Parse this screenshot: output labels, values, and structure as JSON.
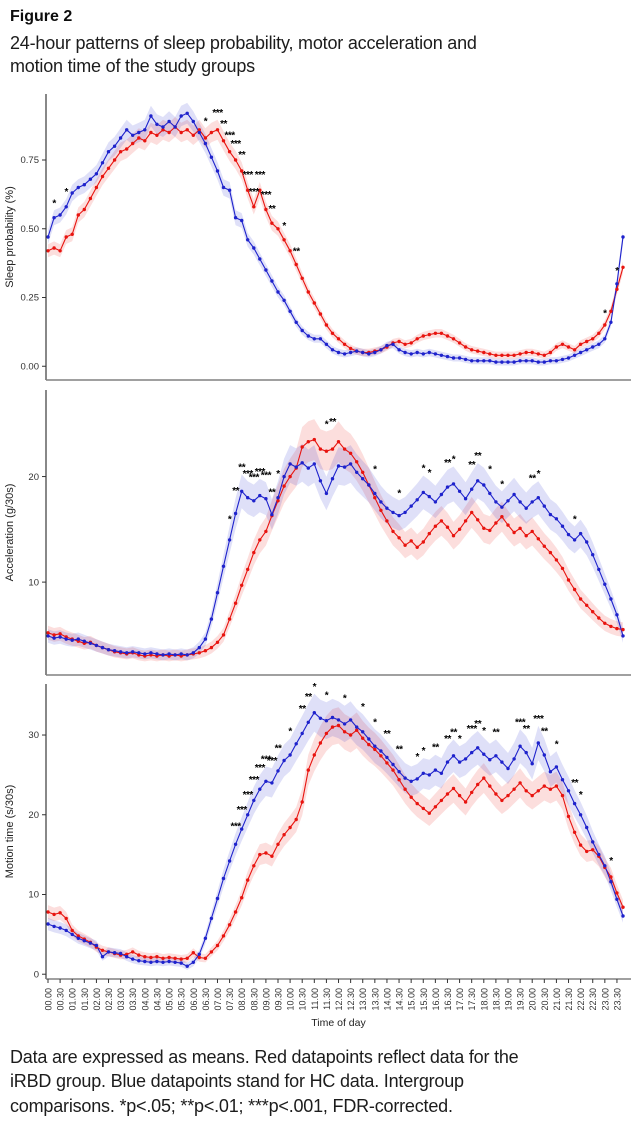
{
  "figure": {
    "label": "Figure 2",
    "title_line1": "24-hour patterns of sleep probability, motor acceleration and",
    "title_line2": "motion time of the study groups"
  },
  "caption": {
    "lines": [
      "Data are expressed as means. Red datapoints reflect data for the",
      "iRBD group. Blue datapoints stand for HC data. Intergroup",
      "comparisons. *p<.05; **p<.01; ***p<.001, FDR-corrected."
    ]
  },
  "groups": {
    "red": {
      "name": "iRBD",
      "color": "#e8140f"
    },
    "blue": {
      "name": "HC",
      "color": "#1e22cc"
    }
  },
  "x_axis": {
    "title": "Time of day",
    "points": 96,
    "interval_min": 15,
    "labels": [
      "00.00",
      "00.30",
      "01.00",
      "01.30",
      "02.00",
      "02.30",
      "03.00",
      "03.30",
      "04.00",
      "04.30",
      "05.00",
      "05.30",
      "06.00",
      "06.30",
      "07.00",
      "07.30",
      "08.00",
      "08.30",
      "09.00",
      "09.30",
      "10.00",
      "10.30",
      "11.00",
      "11.30",
      "12.00",
      "12.30",
      "13.00",
      "13.30",
      "14.00",
      "14.30",
      "15.00",
      "15.30",
      "16.00",
      "16.30",
      "17.00",
      "17.30",
      "18.00",
      "18.30",
      "19.00",
      "19.30",
      "20.00",
      "20.30",
      "21.00",
      "21.30",
      "22.00",
      "22.30",
      "23.00",
      "23.30"
    ]
  },
  "significance_legend": {
    "1": "p<.05",
    "2": "p<.01",
    "3": "p<.001"
  },
  "chart_data": [
    {
      "type": "line",
      "ylabel": "Sleep probability (%)",
      "ylim": [
        -0.05,
        0.99
      ],
      "yticks": [
        {
          "v": 0,
          "label": "0.00"
        },
        {
          "v": 0.25,
          "label": "0.25"
        },
        {
          "v": 0.5,
          "label": "0.50"
        },
        {
          "v": 0.75,
          "label": "0.75"
        }
      ],
      "band": {
        "base": 0.012,
        "frac": 0.028
      },
      "clamp_min": -0.015,
      "series": [
        {
          "name": "iRBD",
          "color": "#e8140f",
          "values": [
            0.42,
            0.43,
            0.42,
            0.47,
            0.48,
            0.55,
            0.57,
            0.61,
            0.65,
            0.69,
            0.72,
            0.75,
            0.78,
            0.79,
            0.81,
            0.83,
            0.82,
            0.85,
            0.84,
            0.86,
            0.85,
            0.87,
            0.85,
            0.86,
            0.84,
            0.86,
            0.83,
            0.85,
            0.86,
            0.82,
            0.78,
            0.75,
            0.71,
            0.64,
            0.58,
            0.64,
            0.57,
            0.52,
            0.5,
            0.46,
            0.42,
            0.37,
            0.32,
            0.27,
            0.23,
            0.19,
            0.15,
            0.12,
            0.1,
            0.08,
            0.065,
            0.055,
            0.05,
            0.05,
            0.055,
            0.06,
            0.07,
            0.085,
            0.09,
            0.08,
            0.085,
            0.1,
            0.11,
            0.115,
            0.12,
            0.12,
            0.11,
            0.1,
            0.085,
            0.07,
            0.06,
            0.055,
            0.05,
            0.045,
            0.04,
            0.04,
            0.04,
            0.04,
            0.045,
            0.05,
            0.05,
            0.045,
            0.04,
            0.05,
            0.07,
            0.08,
            0.07,
            0.06,
            0.08,
            0.09,
            0.1,
            0.12,
            0.15,
            0.2,
            0.28,
            0.36
          ]
        },
        {
          "name": "HC",
          "color": "#1e22cc",
          "values": [
            0.47,
            0.54,
            0.55,
            0.58,
            0.63,
            0.65,
            0.66,
            0.68,
            0.7,
            0.74,
            0.78,
            0.8,
            0.83,
            0.86,
            0.84,
            0.85,
            0.86,
            0.91,
            0.88,
            0.87,
            0.89,
            0.87,
            0.91,
            0.92,
            0.89,
            0.85,
            0.81,
            0.76,
            0.71,
            0.65,
            0.64,
            0.54,
            0.53,
            0.46,
            0.43,
            0.39,
            0.35,
            0.31,
            0.27,
            0.24,
            0.2,
            0.16,
            0.13,
            0.11,
            0.1,
            0.1,
            0.08,
            0.06,
            0.05,
            0.045,
            0.05,
            0.055,
            0.05,
            0.045,
            0.05,
            0.06,
            0.075,
            0.08,
            0.06,
            0.05,
            0.045,
            0.05,
            0.045,
            0.05,
            0.045,
            0.04,
            0.035,
            0.03,
            0.03,
            0.025,
            0.02,
            0.02,
            0.02,
            0.02,
            0.015,
            0.015,
            0.015,
            0.015,
            0.02,
            0.02,
            0.02,
            0.015,
            0.015,
            0.02,
            0.02,
            0.025,
            0.03,
            0.04,
            0.05,
            0.06,
            0.07,
            0.08,
            0.1,
            0.16,
            0.3,
            0.47
          ]
        }
      ],
      "significance": [
        [
          1,
          1
        ],
        [
          3,
          1
        ],
        [
          26,
          1
        ],
        [
          28,
          3
        ],
        [
          29,
          2
        ],
        [
          30,
          3
        ],
        [
          31,
          3
        ],
        [
          32,
          2
        ],
        [
          33,
          3
        ],
        [
          34,
          3
        ],
        [
          35,
          3
        ],
        [
          36,
          3
        ],
        [
          37,
          2
        ],
        [
          39,
          1
        ],
        [
          41,
          2
        ],
        [
          92,
          1
        ],
        [
          94,
          1
        ]
      ]
    },
    {
      "type": "line",
      "ylabel": "Acceleration (g/30s)",
      "ylim": [
        1.2,
        28.2
      ],
      "yticks": [
        {
          "v": 10,
          "label": "10"
        },
        {
          "v": 20,
          "label": "20"
        }
      ],
      "band": {
        "base": 0.3,
        "frac": 0.07
      },
      "clamp_min": 0,
      "series": [
        {
          "name": "iRBD",
          "color": "#e8140f",
          "values": [
            5.2,
            5.0,
            5.1,
            4.8,
            4.6,
            4.4,
            4.2,
            4.3,
            4.0,
            3.8,
            3.6,
            3.4,
            3.3,
            3.2,
            3.3,
            3.1,
            3.0,
            3.1,
            3.0,
            3.1,
            3.0,
            3.1,
            3.0,
            3.1,
            3.2,
            3.3,
            3.5,
            3.8,
            4.3,
            5.0,
            6.5,
            8.0,
            9.7,
            11.2,
            12.8,
            14.0,
            14.8,
            16.3,
            17.7,
            19.1,
            20.0,
            20.8,
            22.8,
            23.3,
            23.5,
            22.6,
            22.4,
            22.6,
            23.3,
            22.6,
            22.2,
            21.4,
            20.4,
            19.2,
            18.0,
            16.8,
            15.8,
            14.8,
            14.2,
            13.5,
            13.9,
            13.3,
            13.8,
            14.6,
            15.3,
            15.8,
            15.2,
            14.4,
            15.0,
            15.8,
            16.6,
            15.9,
            15.1,
            14.9,
            15.6,
            16.2,
            15.4,
            14.7,
            15.1,
            14.4,
            14.8,
            14.1,
            13.4,
            12.8,
            12.1,
            11.3,
            10.2,
            9.3,
            8.4,
            7.8,
            7.2,
            6.6,
            6.1,
            5.8,
            5.6,
            5.5
          ]
        },
        {
          "name": "HC",
          "color": "#1e22cc",
          "values": [
            4.9,
            4.7,
            4.8,
            4.6,
            4.5,
            4.6,
            4.4,
            4.2,
            4.0,
            3.8,
            3.6,
            3.5,
            3.4,
            3.3,
            3.4,
            3.3,
            3.2,
            3.3,
            3.2,
            3.1,
            3.2,
            3.1,
            3.2,
            3.1,
            3.3,
            3.8,
            4.6,
            6.5,
            9.0,
            11.5,
            14.0,
            16.5,
            18.6,
            18.0,
            17.7,
            18.2,
            17.9,
            16.4,
            18.0,
            20.0,
            21.2,
            20.9,
            21.3,
            20.8,
            21.2,
            19.6,
            18.4,
            19.8,
            21.0,
            20.9,
            21.2,
            20.4,
            19.8,
            19.2,
            18.4,
            17.6,
            17.0,
            16.6,
            16.3,
            16.6,
            17.2,
            17.8,
            18.5,
            18.1,
            17.6,
            18.3,
            19.0,
            19.3,
            18.6,
            17.9,
            18.8,
            19.6,
            19.2,
            18.4,
            17.6,
            17.1,
            17.7,
            18.3,
            17.6,
            17.0,
            17.6,
            18.0,
            17.2,
            16.4,
            16.0,
            15.3,
            14.5,
            14.0,
            14.6,
            13.8,
            12.6,
            11.2,
            9.8,
            8.4,
            6.9,
            4.9
          ]
        }
      ],
      "significance": [
        [
          30,
          1
        ],
        [
          31,
          2
        ],
        [
          32,
          2
        ],
        [
          33,
          3
        ],
        [
          34,
          3
        ],
        [
          35,
          3
        ],
        [
          36,
          3
        ],
        [
          37,
          2
        ],
        [
          38,
          1
        ],
        [
          46,
          1
        ],
        [
          47,
          2
        ],
        [
          54,
          1
        ],
        [
          58,
          1
        ],
        [
          62,
          1
        ],
        [
          63,
          1
        ],
        [
          66,
          2
        ],
        [
          67,
          1
        ],
        [
          70,
          2
        ],
        [
          71,
          2
        ],
        [
          73,
          1
        ],
        [
          75,
          1
        ],
        [
          80,
          2
        ],
        [
          81,
          1
        ],
        [
          87,
          1
        ]
      ]
    },
    {
      "type": "line",
      "ylabel": "Motion time (s/30s)",
      "ylim": [
        -0.6,
        36.4
      ],
      "yticks": [
        {
          "v": 0,
          "label": "0"
        },
        {
          "v": 10,
          "label": "10"
        },
        {
          "v": 20,
          "label": "20"
        },
        {
          "v": 30,
          "label": "30"
        }
      ],
      "band": {
        "base": 0.4,
        "frac": 0.06
      },
      "clamp_min": 0,
      "series": [
        {
          "name": "iRBD",
          "color": "#e8140f",
          "values": [
            7.8,
            7.5,
            7.7,
            7.0,
            5.5,
            4.8,
            4.4,
            4.0,
            3.4,
            3.0,
            2.8,
            2.6,
            2.4,
            2.5,
            2.8,
            2.4,
            2.2,
            2.1,
            2.2,
            2.0,
            2.1,
            2.0,
            1.9,
            2.0,
            2.7,
            2.1,
            2.0,
            2.8,
            3.6,
            4.8,
            6.2,
            7.8,
            9.6,
            11.8,
            13.6,
            15.0,
            15.2,
            14.8,
            16.3,
            17.5,
            18.4,
            19.4,
            21.6,
            25.6,
            27.5,
            29.0,
            30.2,
            31.0,
            31.2,
            30.4,
            30.0,
            30.6,
            29.6,
            28.8,
            28.2,
            27.4,
            26.5,
            25.6,
            24.4,
            23.2,
            22.2,
            21.4,
            20.8,
            20.2,
            21.0,
            21.8,
            22.6,
            23.3,
            22.4,
            21.6,
            22.8,
            23.8,
            24.6,
            23.6,
            22.6,
            21.8,
            22.4,
            23.2,
            24.0,
            23.0,
            22.4,
            23.0,
            23.6,
            23.2,
            23.6,
            22.4,
            19.8,
            17.8,
            16.2,
            15.4,
            15.6,
            14.8,
            13.4,
            12.2,
            10.2,
            8.4
          ]
        },
        {
          "name": "HC",
          "color": "#1e22cc",
          "values": [
            6.3,
            6.0,
            5.8,
            5.5,
            5.0,
            4.5,
            4.2,
            3.9,
            3.6,
            2.2,
            2.8,
            2.7,
            2.6,
            2.2,
            1.9,
            1.7,
            1.6,
            1.5,
            1.6,
            1.5,
            1.6,
            1.5,
            1.4,
            1.0,
            1.5,
            2.5,
            4.5,
            7.0,
            9.5,
            12.0,
            14.2,
            16.3,
            18.2,
            20.0,
            21.8,
            23.2,
            24.2,
            24.0,
            25.5,
            26.8,
            27.5,
            28.9,
            30.2,
            31.6,
            32.8,
            32.1,
            31.8,
            32.2,
            31.9,
            31.4,
            31.9,
            31.0,
            30.4,
            29.5,
            28.6,
            28.0,
            27.2,
            26.3,
            25.4,
            24.6,
            24.2,
            24.5,
            25.2,
            25.0,
            25.6,
            25.2,
            26.6,
            27.4,
            26.6,
            27.0,
            27.8,
            28.4,
            27.6,
            26.9,
            27.4,
            26.6,
            25.8,
            27.0,
            28.6,
            27.8,
            26.4,
            29.0,
            27.5,
            25.4,
            26.0,
            24.4,
            23.0,
            21.4,
            20.0,
            18.4,
            16.6,
            15.0,
            13.6,
            11.6,
            9.4,
            7.3
          ]
        }
      ],
      "significance": [
        [
          31,
          3
        ],
        [
          32,
          3
        ],
        [
          33,
          3
        ],
        [
          34,
          3
        ],
        [
          35,
          3
        ],
        [
          36,
          3
        ],
        [
          37,
          3
        ],
        [
          38,
          2
        ],
        [
          40,
          1
        ],
        [
          42,
          2
        ],
        [
          43,
          2
        ],
        [
          44,
          1
        ],
        [
          46,
          1
        ],
        [
          49,
          1
        ],
        [
          52,
          1
        ],
        [
          54,
          1
        ],
        [
          56,
          2
        ],
        [
          58,
          2
        ],
        [
          61,
          1
        ],
        [
          62,
          1
        ],
        [
          64,
          2
        ],
        [
          66,
          2
        ],
        [
          67,
          2
        ],
        [
          68,
          1
        ],
        [
          70,
          3
        ],
        [
          71,
          2
        ],
        [
          72,
          1
        ],
        [
          74,
          2
        ],
        [
          78,
          3
        ],
        [
          79,
          2
        ],
        [
          81,
          3
        ],
        [
          82,
          2
        ],
        [
          84,
          1
        ],
        [
          87,
          2
        ],
        [
          88,
          1
        ],
        [
          93,
          1
        ]
      ]
    }
  ]
}
